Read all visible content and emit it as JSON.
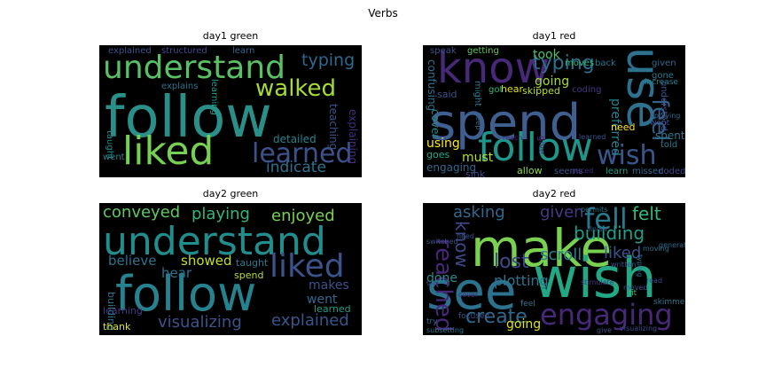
{
  "figure": {
    "title": "Verbs"
  },
  "panels": [
    {
      "title": "day1 green",
      "words": [
        {
          "text": "follow",
          "color": "#2a8f89"
        },
        {
          "text": "understand",
          "color": "#59c064"
        },
        {
          "text": "liked",
          "color": "#75d054"
        },
        {
          "text": "learned",
          "color": "#3b528b"
        },
        {
          "text": "walked",
          "color": "#a5db36"
        },
        {
          "text": "typing",
          "color": "#31688e"
        },
        {
          "text": "indicate",
          "color": "#2c728e"
        },
        {
          "text": "teaching",
          "color": "#3b528b"
        },
        {
          "text": "explaining",
          "color": "#472d7b"
        },
        {
          "text": "detailed",
          "color": "#26828e"
        },
        {
          "text": "explained",
          "color": "#3b528b"
        },
        {
          "text": "structured",
          "color": "#3e4989"
        },
        {
          "text": "learn",
          "color": "#31688e"
        },
        {
          "text": "explains",
          "color": "#2c728e"
        },
        {
          "text": "learning",
          "color": "#1f9e89"
        },
        {
          "text": "taught",
          "color": "#228d8d"
        },
        {
          "text": "went",
          "color": "#26828e"
        }
      ]
    },
    {
      "title": "day1 red",
      "words": [
        {
          "text": "spend",
          "color": "#3e5f8f"
        },
        {
          "text": "know",
          "color": "#482878"
        },
        {
          "text": "use",
          "color": "#2d718e"
        },
        {
          "text": "follow",
          "color": "#1f968b"
        },
        {
          "text": "wish",
          "color": "#39568c"
        },
        {
          "text": "feel",
          "color": "#33638d"
        },
        {
          "text": "typing",
          "color": "#2d708e"
        },
        {
          "text": "took",
          "color": "#4ac16d"
        },
        {
          "text": "going",
          "color": "#a5db36"
        },
        {
          "text": "preferred",
          "color": "#26828e"
        },
        {
          "text": "confusing",
          "color": "#2d708e"
        },
        {
          "text": "speak",
          "color": "#3b528b"
        },
        {
          "text": "getting",
          "color": "#5ec962"
        },
        {
          "text": "moves",
          "color": "#35b779"
        },
        {
          "text": "back",
          "color": "#2c728e"
        },
        {
          "text": "given",
          "color": "#31688e"
        },
        {
          "text": "gone",
          "color": "#2a788e"
        },
        {
          "text": "understood",
          "color": "#3b528b"
        },
        {
          "text": "skipped",
          "color": "#b5de2b"
        },
        {
          "text": "coding",
          "color": "#443983"
        },
        {
          "text": "hear",
          "color": "#dde318"
        },
        {
          "text": "said",
          "color": "#3b528b"
        },
        {
          "text": "might",
          "color": "#2a788e"
        },
        {
          "text": "got",
          "color": "#35b779"
        },
        {
          "text": "cover",
          "color": "#228d8d"
        },
        {
          "text": "using",
          "color": "#fde725"
        },
        {
          "text": "must",
          "color": "#b8de29"
        },
        {
          "text": "goes",
          "color": "#22a884"
        },
        {
          "text": "engaging",
          "color": "#31688e"
        },
        {
          "text": "need",
          "color": "#fde725"
        },
        {
          "text": "spent",
          "color": "#2a788e"
        },
        {
          "text": "told",
          "color": "#2a788e"
        },
        {
          "text": "sink",
          "color": "#3e4989"
        },
        {
          "text": "allow",
          "color": "#90d743"
        },
        {
          "text": "seems",
          "color": "#39568c"
        },
        {
          "text": "paced",
          "color": "#472d7b"
        },
        {
          "text": "learn",
          "color": "#1f9e89"
        },
        {
          "text": "missed",
          "color": "#31688e"
        },
        {
          "text": "coded",
          "color": "#3e4989"
        },
        {
          "text": "give",
          "color": "#482878"
        },
        {
          "text": "keep",
          "color": "#31688e"
        },
        {
          "text": "learned",
          "color": "#3b528b"
        },
        {
          "text": "applying",
          "color": "#31688e"
        },
        {
          "text": "increase",
          "color": "#26828e"
        },
        {
          "text": "went",
          "color": "#3b528b"
        },
        {
          "text": "reach",
          "color": "#482878"
        }
      ]
    },
    {
      "title": "day2 green",
      "words": [
        {
          "text": "understand",
          "color": "#228d8d"
        },
        {
          "text": "follow",
          "color": "#26828e"
        },
        {
          "text": "liked",
          "color": "#3b528b"
        },
        {
          "text": "conveyed",
          "color": "#5ec962"
        },
        {
          "text": "playing",
          "color": "#35b779"
        },
        {
          "text": "enjoyed",
          "color": "#7ad151"
        },
        {
          "text": "believe",
          "color": "#2c728e"
        },
        {
          "text": "showed",
          "color": "#c2df23"
        },
        {
          "text": "hear",
          "color": "#2c728e"
        },
        {
          "text": "taught",
          "color": "#2a788e"
        },
        {
          "text": "makes",
          "color": "#3b528b"
        },
        {
          "text": "went",
          "color": "#31688e"
        },
        {
          "text": "learned",
          "color": "#1f9e89"
        },
        {
          "text": "explained",
          "color": "#39568c"
        },
        {
          "text": "visualizing",
          "color": "#3b528b"
        },
        {
          "text": "learning",
          "color": "#443983"
        },
        {
          "text": "building",
          "color": "#2c728e"
        },
        {
          "text": "spend",
          "color": "#b8de29"
        },
        {
          "text": "thank",
          "color": "#dde318"
        }
      ]
    },
    {
      "title": "day2 red",
      "words": [
        {
          "text": "make",
          "color": "#7ad151"
        },
        {
          "text": "wish",
          "color": "#22a884"
        },
        {
          "text": "see",
          "color": "#2c728e"
        },
        {
          "text": "engaging",
          "color": "#482878"
        },
        {
          "text": "fell",
          "color": "#2a788e"
        },
        {
          "text": "felt",
          "color": "#35b779"
        },
        {
          "text": "building",
          "color": "#1f9e89"
        },
        {
          "text": "liked",
          "color": "#3b528b"
        },
        {
          "text": "scroll",
          "color": "#26828e"
        },
        {
          "text": "lost",
          "color": "#3e4989"
        },
        {
          "text": "reached",
          "color": "#482878"
        },
        {
          "text": "know",
          "color": "#3e4989"
        },
        {
          "text": "asking",
          "color": "#31688e"
        },
        {
          "text": "given",
          "color": "#443983"
        },
        {
          "text": "done",
          "color": "#228d8d"
        },
        {
          "text": "plotting",
          "color": "#2c728e"
        },
        {
          "text": "create",
          "color": "#31688e"
        },
        {
          "text": "going",
          "color": "#dde318"
        },
        {
          "text": "permits",
          "color": "#2a788e"
        },
        {
          "text": "generate",
          "color": "#31688e"
        },
        {
          "text": "finish",
          "color": "#31688e"
        },
        {
          "text": "written",
          "color": "#3b528b"
        },
        {
          "text": "moving",
          "color": "#2c728e"
        },
        {
          "text": "need",
          "color": "#3b528b"
        },
        {
          "text": "switched",
          "color": "#3b528b"
        },
        {
          "text": "stimulate",
          "color": "#443983"
        },
        {
          "text": "moved",
          "color": "#3b528b"
        },
        {
          "text": "cover",
          "color": "#482878"
        },
        {
          "text": "typing",
          "color": "#2c728e"
        },
        {
          "text": "read",
          "color": "#3e4989"
        },
        {
          "text": "fit",
          "color": "#35b779"
        },
        {
          "text": "skimmed",
          "color": "#2c728e"
        },
        {
          "text": "feel",
          "color": "#2c728e"
        },
        {
          "text": "focused",
          "color": "#3b528b"
        },
        {
          "text": "try",
          "color": "#31688e"
        },
        {
          "text": "subsetting",
          "color": "#2a788e"
        },
        {
          "text": "give",
          "color": "#3b528b"
        },
        {
          "text": "visualizing",
          "color": "#3e4989"
        },
        {
          "text": "go",
          "color": "#3b528b"
        }
      ]
    }
  ]
}
